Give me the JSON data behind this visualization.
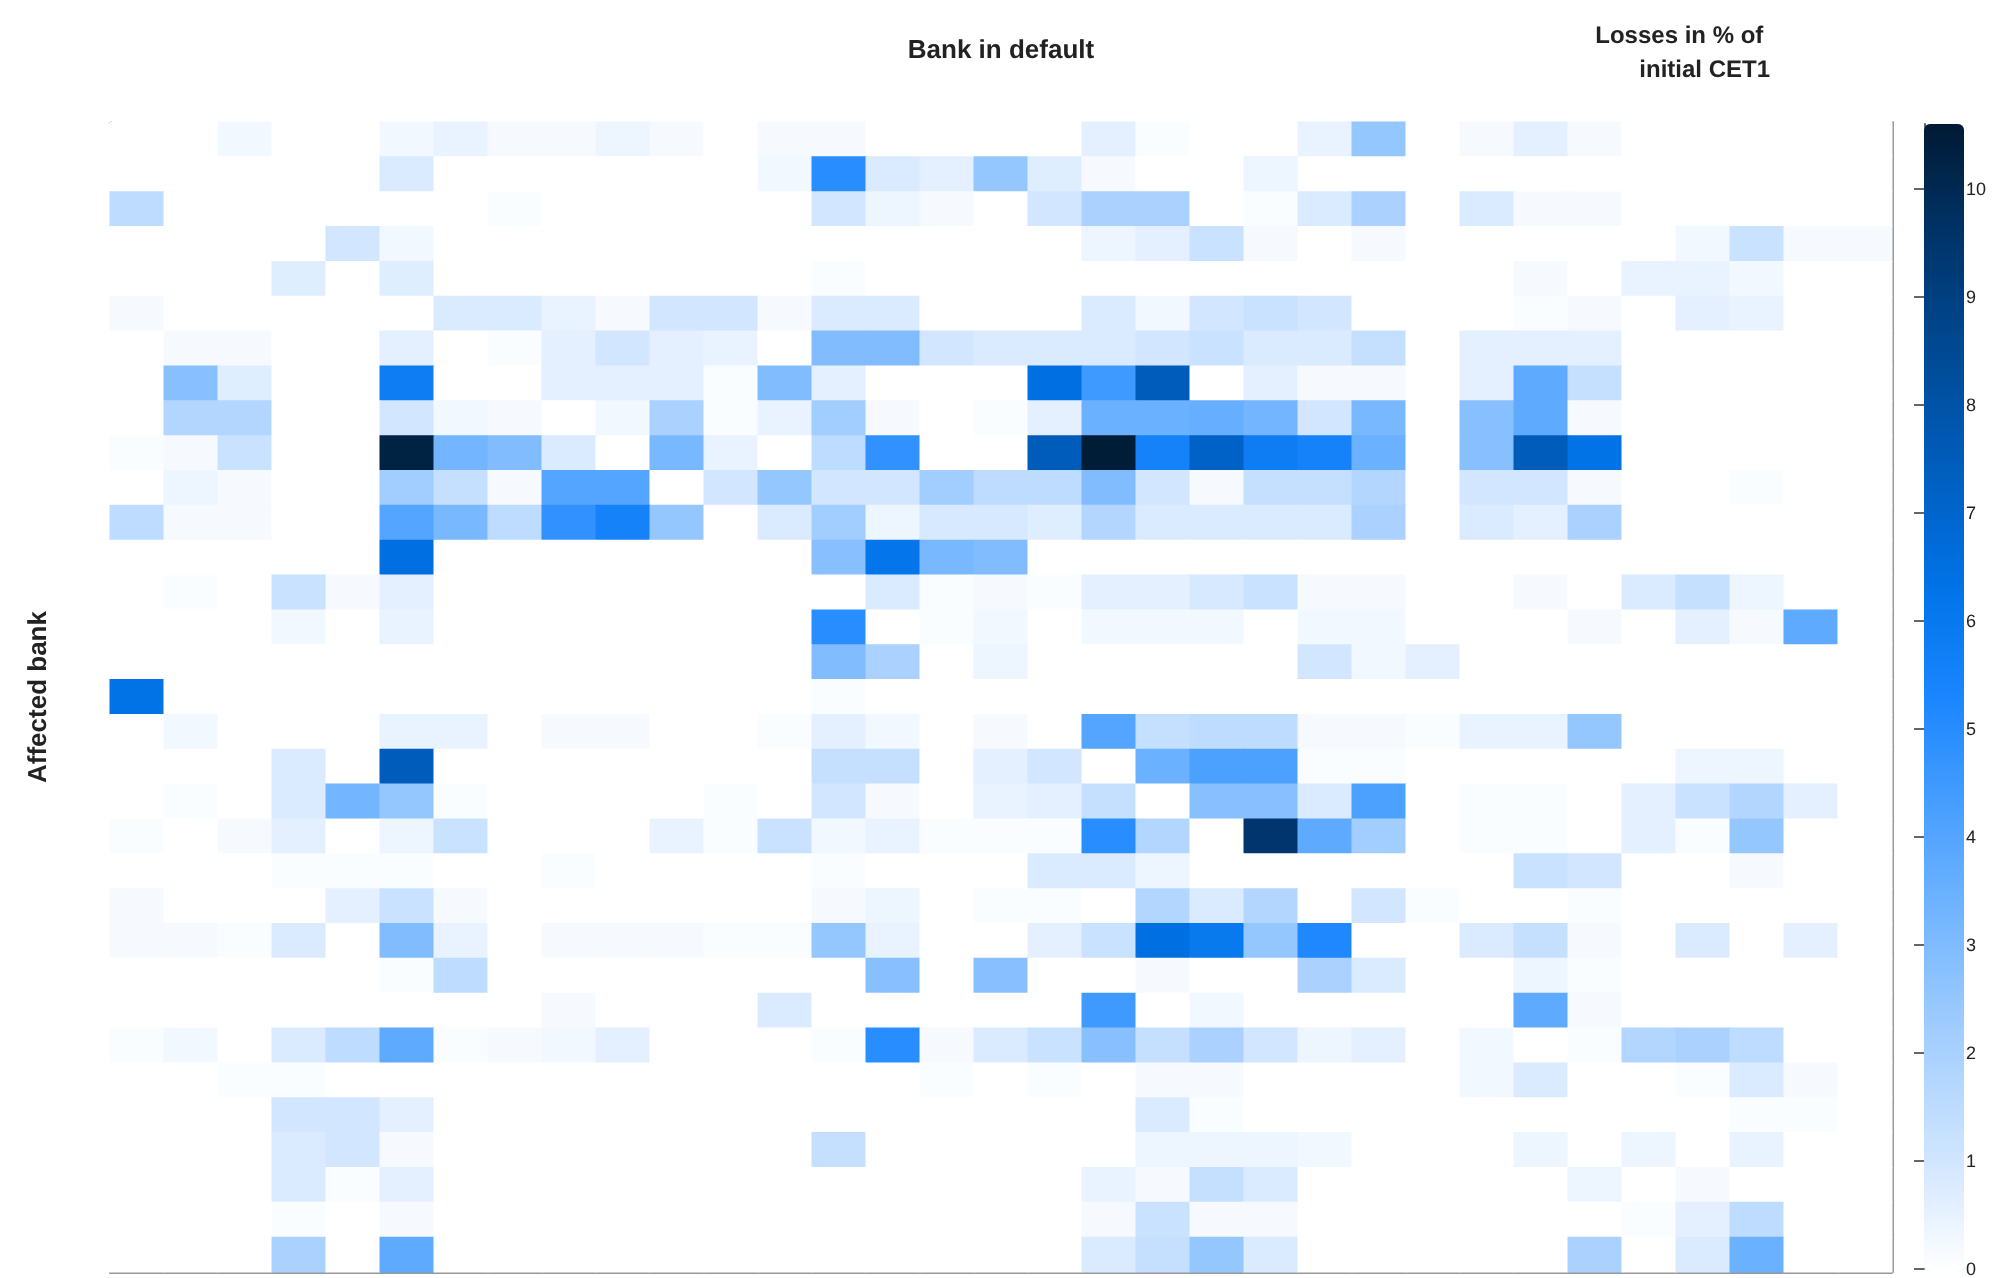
{
  "chart_data": {
    "type": "heatmap",
    "xlabel": "Bank in default",
    "ylabel": "Affected bank",
    "clabel": "Losses in % of initial CET1",
    "categories": [
      null,
      null,
      null,
      null,
      null,
      null,
      null,
      null,
      null,
      null,
      null,
      null,
      null,
      null,
      null,
      null,
      null,
      null,
      null,
      null,
      null,
      null,
      null,
      null,
      null,
      null,
      null,
      null,
      null,
      null,
      null,
      null,
      null
    ],
    "y_categories": [
      null,
      null,
      null,
      null,
      null,
      null,
      null,
      null,
      null,
      null,
      null,
      null,
      null,
      null,
      null,
      null,
      null,
      null,
      null,
      null,
      null,
      null,
      null,
      null,
      null,
      null,
      null,
      null,
      null,
      null,
      null,
      null,
      null
    ],
    "clim": [
      0,
      10.6
    ],
    "cticks": [
      0,
      1,
      2,
      3,
      4,
      5,
      6,
      7,
      8,
      9,
      10
    ],
    "cells": [
      [
        0,
        0,
        0.3,
        0,
        0,
        0.3,
        0.5,
        0.2,
        0.2,
        0.4,
        0.2,
        0,
        0.2,
        0.2,
        0,
        0,
        0,
        0,
        0.6,
        0.1,
        0,
        0,
        0.5,
        2.5,
        0,
        0.2,
        0.6,
        0.2,
        0,
        0,
        0,
        0,
        0
      ],
      [
        0,
        0,
        0,
        0,
        0,
        0.8,
        0,
        0,
        0,
        0,
        0,
        0,
        0.3,
        5,
        0.8,
        0.6,
        2.5,
        0.7,
        0.2,
        0,
        0,
        0.4,
        0,
        0,
        0,
        0,
        0,
        0,
        0,
        0,
        0,
        0,
        0
      ],
      [
        1.5,
        0,
        0,
        0,
        0,
        0,
        0,
        0.1,
        0,
        0,
        0,
        0,
        0,
        1,
        0.4,
        0.2,
        0,
        1,
        2,
        2,
        0,
        0.1,
        0.8,
        2,
        0,
        0.8,
        0.2,
        0.2,
        0,
        0,
        0,
        0,
        0
      ],
      [
        0,
        0,
        0,
        0,
        1,
        0.3,
        0,
        0,
        0,
        0,
        0,
        0,
        0,
        0,
        0,
        0,
        0,
        0,
        0.4,
        0.6,
        1.2,
        0.2,
        0,
        0.2,
        0,
        0,
        0,
        0,
        0,
        0.3,
        1.2,
        0.2,
        0.2
      ],
      [
        0,
        0,
        0,
        0.7,
        0,
        0.7,
        0,
        0,
        0,
        0,
        0,
        0,
        0,
        0.1,
        0,
        0,
        0,
        0,
        0,
        0,
        0,
        0,
        0,
        0,
        0,
        0,
        0.2,
        0,
        0.5,
        0.5,
        0.3,
        0,
        0
      ],
      [
        0.2,
        0,
        0,
        0,
        0,
        0,
        0.8,
        0.8,
        0.5,
        0.2,
        1,
        1,
        0.2,
        0.8,
        0.8,
        0,
        0,
        0,
        0.8,
        0.3,
        1,
        1.2,
        1,
        0,
        0,
        0,
        0.1,
        0.2,
        0,
        0.6,
        0.5,
        0,
        0
      ],
      [
        0,
        0.2,
        0.2,
        0,
        0,
        0.6,
        0,
        0.1,
        0.6,
        1,
        0.6,
        0.5,
        0,
        3,
        3,
        1,
        0.8,
        0.8,
        0.8,
        1,
        1.2,
        0.8,
        0.8,
        1.3,
        0,
        0.6,
        0.6,
        0.6,
        0,
        0,
        0,
        0,
        0
      ],
      [
        0,
        2.8,
        0.7,
        0,
        0,
        5.8,
        0,
        0,
        0.6,
        0.6,
        0.6,
        0.1,
        3,
        0.6,
        0,
        0,
        0,
        6.5,
        4.5,
        7.5,
        0,
        0.6,
        0.2,
        0.2,
        0,
        0.6,
        3.8,
        1.3,
        0,
        0,
        0,
        0,
        0
      ],
      [
        0,
        1.8,
        1.8,
        0,
        0,
        1,
        0.3,
        0.2,
        0,
        0.3,
        2,
        0.1,
        0.5,
        2.2,
        0.2,
        0,
        0.1,
        0.6,
        3.5,
        3.5,
        3.6,
        3.3,
        1,
        3.2,
        0,
        2.8,
        3.8,
        0.2,
        0,
        0,
        0,
        0,
        0
      ],
      [
        0.1,
        0.2,
        1.2,
        0,
        0,
        10.3,
        3.3,
        3,
        0.8,
        0,
        3.2,
        0.5,
        0,
        1.5,
        4.8,
        0,
        0,
        7.5,
        10.5,
        5.5,
        7.2,
        5.8,
        5.5,
        3.5,
        0,
        2.8,
        7.5,
        6.3,
        0,
        0,
        0,
        0,
        0
      ],
      [
        0,
        0.4,
        0.2,
        0,
        0,
        2.2,
        1.3,
        0.2,
        4,
        4,
        0,
        1,
        2.5,
        1,
        1,
        2.2,
        1.5,
        1.5,
        3,
        1,
        0.2,
        1.3,
        1.3,
        1.8,
        0,
        1,
        1,
        0.2,
        0,
        0,
        0.1,
        0,
        0
      ],
      [
        1.5,
        0.2,
        0.2,
        0,
        0,
        4,
        3.2,
        1.5,
        4.8,
        5.5,
        2.5,
        0,
        0.8,
        2.2,
        0.4,
        0.9,
        0.9,
        0.7,
        1.8,
        0.8,
        0.8,
        0.8,
        0.8,
        2,
        0,
        0.8,
        0.6,
        2,
        0,
        0,
        0,
        0,
        0
      ],
      [
        0,
        0,
        0,
        0,
        0,
        6.5,
        0,
        0,
        0,
        0,
        0,
        0,
        0,
        2.8,
        6.2,
        3.2,
        3,
        0,
        0,
        0,
        0,
        0,
        0,
        0,
        0,
        0,
        0,
        0,
        0,
        0,
        0,
        0,
        0
      ],
      [
        0,
        0.1,
        0,
        1.2,
        0.2,
        0.6,
        0,
        0,
        0,
        0,
        0,
        0,
        0,
        0,
        0.8,
        0.1,
        0.2,
        0.1,
        0.6,
        0.6,
        0.9,
        1.2,
        0.2,
        0.2,
        0,
        0,
        0.2,
        0,
        0.8,
        1.3,
        0.4,
        0,
        0
      ],
      [
        0,
        0,
        0,
        0.3,
        0,
        0.5,
        0,
        0,
        0,
        0,
        0,
        0,
        0,
        5,
        0,
        0.1,
        0.3,
        0,
        0.3,
        0.3,
        0.3,
        0,
        0.3,
        0.3,
        0,
        0,
        0,
        0.2,
        0,
        0.6,
        0.2,
        3.8,
        0
      ],
      [
        0,
        0,
        0,
        0,
        0,
        0,
        0,
        0,
        0,
        0,
        0,
        0,
        0,
        3,
        2,
        0,
        0.4,
        0,
        0,
        0,
        0,
        0,
        1,
        0.3,
        0.6,
        0,
        0,
        0,
        0,
        0,
        0,
        0,
        0
      ],
      [
        6.3,
        0,
        0,
        0,
        0,
        0,
        0,
        0,
        0,
        0,
        0,
        0,
        0,
        0.1,
        0,
        0,
        0,
        0,
        0,
        0,
        0,
        0,
        0,
        0,
        0,
        0,
        0,
        0,
        0,
        0,
        0,
        0,
        0
      ],
      [
        0,
        0.3,
        0,
        0,
        0,
        0.5,
        0.5,
        0,
        0.2,
        0.2,
        0,
        0,
        0.1,
        0.6,
        0.3,
        0,
        0.2,
        0,
        4,
        1.3,
        1.5,
        1.5,
        0.2,
        0.2,
        0.1,
        0.5,
        0.5,
        2.5,
        0,
        0,
        0,
        0,
        0
      ],
      [
        0,
        0,
        0,
        0.8,
        0,
        7.5,
        0,
        0,
        0,
        0,
        0,
        0,
        0,
        1.3,
        1.3,
        0,
        0.6,
        1,
        0,
        3.5,
        4.2,
        4.2,
        0.1,
        0.1,
        0,
        0,
        0,
        0,
        0,
        0.4,
        0.4,
        0,
        0
      ],
      [
        0,
        0.1,
        0,
        0.8,
        3.3,
        2.5,
        0.1,
        0,
        0,
        0,
        0,
        0.1,
        0,
        1,
        0.2,
        0,
        0.5,
        0.6,
        1.3,
        0,
        2.8,
        2.8,
        0.8,
        4.2,
        0,
        0.1,
        0.1,
        0,
        0.6,
        1.2,
        1.8,
        0.6,
        0
      ],
      [
        0.1,
        0,
        0.2,
        0.6,
        0,
        0.4,
        1.2,
        0,
        0,
        0,
        0.5,
        0.1,
        1.2,
        0.3,
        0.5,
        0.1,
        0.1,
        0.1,
        5,
        1.8,
        0,
        9.5,
        3.8,
        2.2,
        0,
        0.1,
        0.1,
        0,
        0.6,
        0.1,
        2.5,
        0,
        0
      ],
      [
        0,
        0,
        0,
        0.1,
        0.1,
        0.1,
        0,
        0,
        0.1,
        0,
        0,
        0,
        0,
        0.1,
        0,
        0,
        0,
        0.8,
        0.8,
        0.4,
        0,
        0,
        0,
        0,
        0,
        0,
        1.2,
        1,
        0,
        0,
        0.2,
        0,
        0
      ],
      [
        0.2,
        0,
        0,
        0,
        0.6,
        1.2,
        0.2,
        0,
        0,
        0,
        0,
        0,
        0,
        0.2,
        0.4,
        0,
        0.1,
        0.1,
        0,
        1.8,
        0.8,
        1.8,
        0,
        1,
        0.1,
        0,
        0,
        0.1,
        0,
        0,
        0,
        0,
        0
      ],
      [
        0.2,
        0.2,
        0.1,
        0.8,
        0,
        3,
        0.5,
        0,
        0.2,
        0.2,
        0.2,
        0.1,
        0.1,
        2.5,
        0.5,
        0,
        0,
        0.6,
        1.2,
        6.5,
        6,
        2.5,
        5.2,
        0,
        0,
        0.8,
        1.3,
        0.2,
        0,
        0.8,
        0,
        0.6,
        0
      ],
      [
        0,
        0,
        0,
        0,
        0,
        0.1,
        1.5,
        0,
        0,
        0,
        0,
        0,
        0,
        0,
        2.8,
        0,
        2.8,
        0,
        0,
        0.2,
        0,
        0,
        2,
        0.8,
        0,
        0,
        0.4,
        0.1,
        0,
        0,
        0,
        0,
        0
      ],
      [
        0,
        0,
        0,
        0,
        0,
        0,
        0,
        0,
        0.2,
        0,
        0,
        0,
        0.8,
        0,
        0,
        0,
        0,
        0,
        4.5,
        0,
        0.3,
        0,
        0,
        0,
        0,
        0,
        3.8,
        0.2,
        0,
        0,
        0,
        0,
        0
      ],
      [
        0.1,
        0.3,
        0,
        0.8,
        1.5,
        3.8,
        0.1,
        0.2,
        0.3,
        0.6,
        0,
        0,
        0,
        0.1,
        5,
        0.2,
        0.8,
        1.2,
        2.8,
        1.3,
        2,
        1,
        0.4,
        0.6,
        0,
        0.3,
        0,
        0.1,
        1.8,
        2,
        1.5,
        0,
        0
      ],
      [
        0,
        0,
        0.1,
        0.1,
        0,
        0,
        0,
        0,
        0,
        0,
        0,
        0,
        0,
        0,
        0,
        0.1,
        0,
        0.1,
        0,
        0.2,
        0.2,
        0,
        0,
        0,
        0,
        0.3,
        0.8,
        0,
        0,
        0.1,
        0.8,
        0.2,
        0
      ],
      [
        0,
        0,
        0,
        1,
        1,
        0.6,
        0,
        0,
        0,
        0,
        0,
        0,
        0,
        0,
        0,
        0,
        0,
        0,
        0,
        0.8,
        0.1,
        0,
        0,
        0,
        0,
        0,
        0,
        0,
        0,
        0,
        0.1,
        0.1,
        0
      ],
      [
        0,
        0,
        0,
        0.8,
        1,
        0.2,
        0,
        0,
        0,
        0,
        0,
        0,
        0,
        1.3,
        0,
        0,
        0,
        0,
        0,
        0.4,
        0.4,
        0.4,
        0.3,
        0,
        0,
        0,
        0.4,
        0,
        0.4,
        0,
        0.5,
        0,
        0
      ],
      [
        0,
        0,
        0,
        0.8,
        0.1,
        0.6,
        0,
        0,
        0,
        0,
        0,
        0,
        0,
        0,
        0,
        0,
        0,
        0,
        0.5,
        0.2,
        1.3,
        0.8,
        0,
        0,
        0,
        0,
        0,
        0.4,
        0,
        0.2,
        0,
        0,
        0
      ],
      [
        0,
        0,
        0,
        0.1,
        0,
        0.2,
        0,
        0,
        0,
        0,
        0,
        0,
        0,
        0,
        0,
        0,
        0,
        0,
        0.2,
        1.2,
        0.2,
        0.2,
        0,
        0,
        0,
        0,
        0,
        0,
        0.1,
        0.6,
        1.5,
        0,
        0
      ],
      [
        0,
        0,
        0,
        2,
        0,
        3.8,
        0,
        0,
        0,
        0,
        0,
        0,
        0,
        0,
        0,
        0,
        0,
        0,
        0.8,
        1.3,
        2.5,
        0.8,
        0,
        0,
        0,
        0,
        0,
        2,
        0,
        0.8,
        3.5,
        0,
        0
      ]
    ]
  }
}
